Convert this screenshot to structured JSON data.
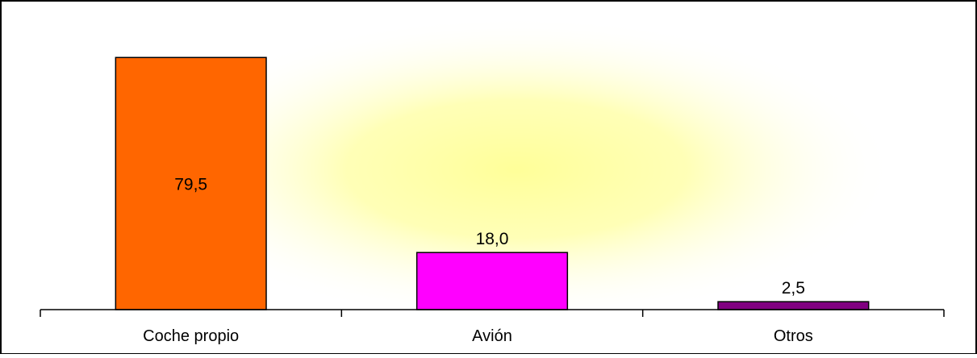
{
  "chart_data": {
    "type": "bar",
    "categories": [
      "Coche propio",
      "Avión",
      "Otros"
    ],
    "values": [
      79.5,
      18.0,
      2.5
    ],
    "value_labels": [
      "79,5",
      "18,0",
      "2,5"
    ],
    "ylim": [
      0,
      90
    ],
    "grid": false,
    "legend": "none",
    "title": "",
    "xlabel": "",
    "ylabel": "",
    "colors": [
      "#FF6600",
      "#FF00FF",
      "#800080"
    ],
    "plot_background": "radial yellow glow"
  }
}
